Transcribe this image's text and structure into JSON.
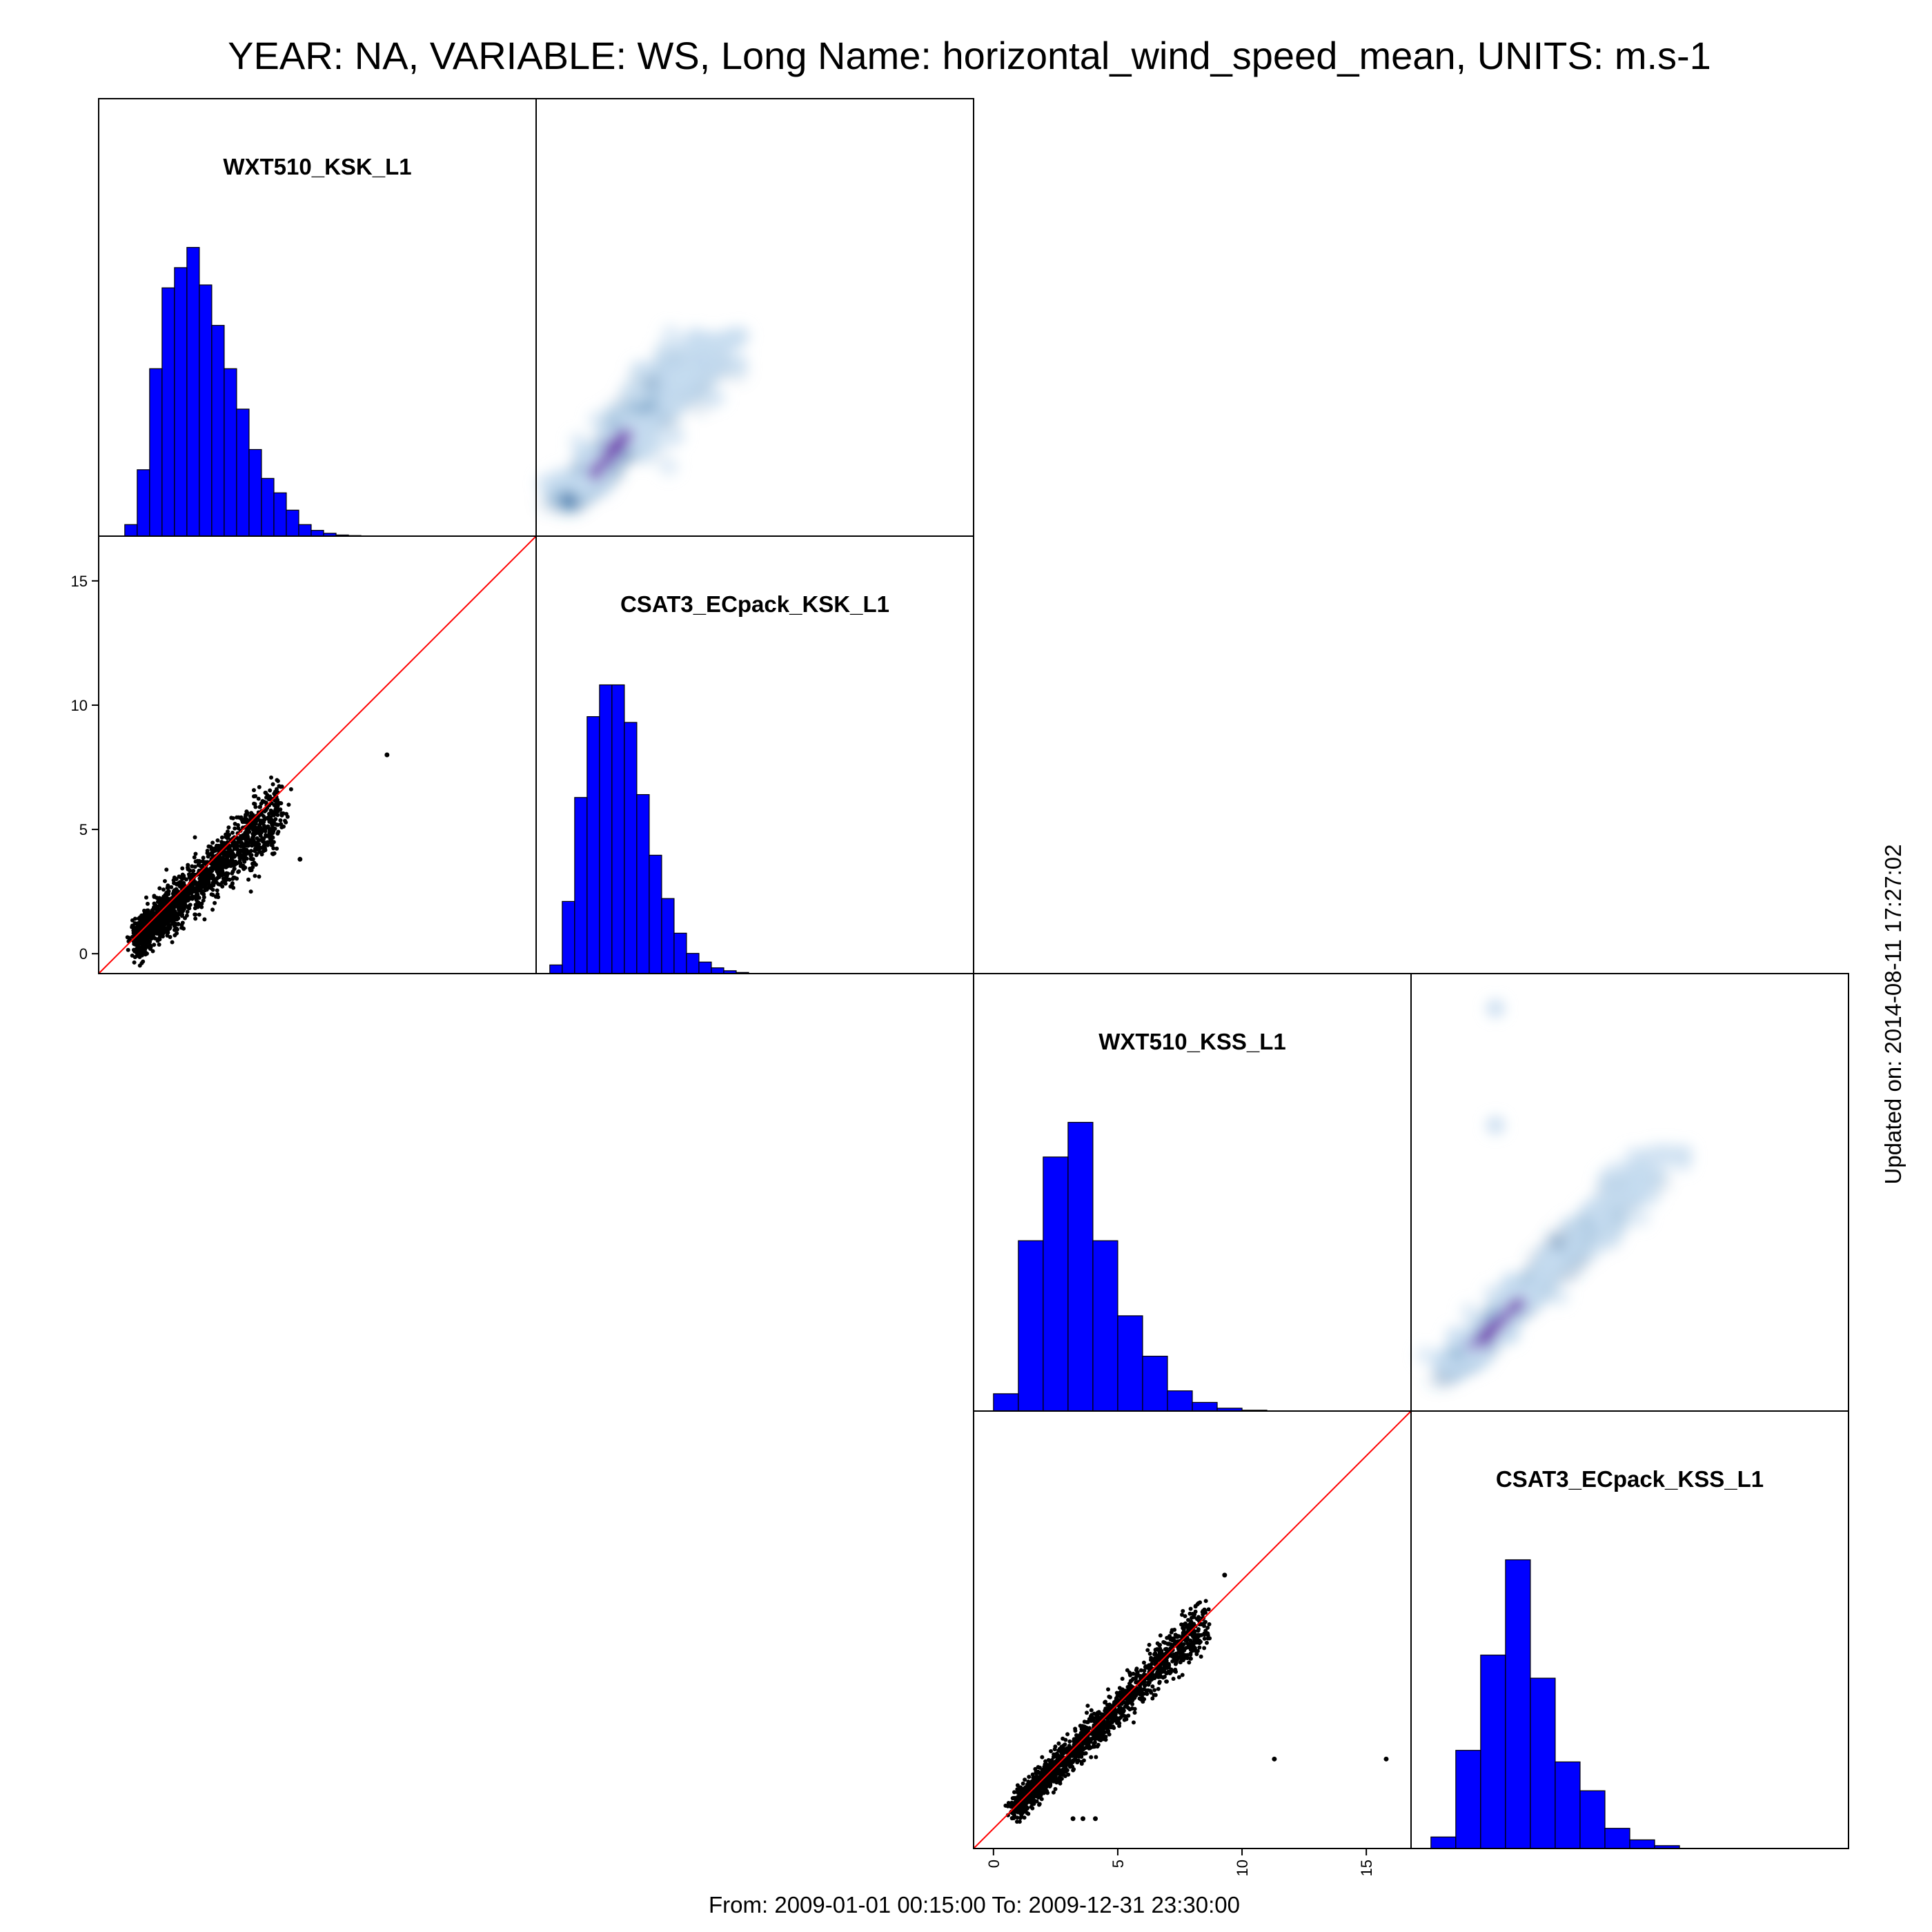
{
  "title": "YEAR: NA, VARIABLE: WS, Long Name: horizontal_wind_speed_mean, UNITS: m.s-1",
  "footer": "From: 2009-01-01 00:15:00 To: 2009-12-31 23:30:00",
  "updated": "Updated on: 2014-08-11 17:27:02",
  "colors": {
    "bar": "#0000ff",
    "density_light": "#c6dbef",
    "density_mid": "#2b6fa8",
    "density_core": "#6a2ba8",
    "points": "#000000",
    "identity_line": "#ff0000",
    "frame": "#000000"
  },
  "chart_data": [
    {
      "type": "scatter",
      "panel": "KSK",
      "x_variable": "WXT510_KSK_L1",
      "y_variable": "CSAT3_ECpack_KSK_L1",
      "x_range": [
        -0.8,
        16.8
      ],
      "y_range": [
        -0.8,
        16.8
      ],
      "y_ticks": [
        0,
        5,
        10,
        15
      ],
      "reference_line": "y = x",
      "point_cloud": {
        "x_center_start": 0.8,
        "x_center_end": 6.5,
        "slope": 0.88,
        "spread_y": 0.55,
        "outliers": [
          [
            10.8,
            8.0
          ],
          [
            7.3,
            3.8
          ]
        ]
      },
      "diagonal_histograms": [
        {
          "label": "WXT510_KSK_L1",
          "bin_start": -0.25,
          "bin_width": 0.5,
          "counts": [
            0,
            0.04,
            0.23,
            0.58,
            0.86,
            0.93,
            1.0,
            0.87,
            0.73,
            0.58,
            0.44,
            0.3,
            0.2,
            0.15,
            0.09,
            0.04,
            0.02,
            0.01,
            0.004,
            0.002
          ]
        },
        {
          "label": "CSAT3_ECpack_KSK_L1",
          "bin_start": -0.25,
          "bin_width": 0.5,
          "counts": [
            0.03,
            0.25,
            0.61,
            0.89,
            1.0,
            1.0,
            0.87,
            0.62,
            0.41,
            0.26,
            0.14,
            0.07,
            0.04,
            0.02,
            0.01,
            0.004
          ]
        }
      ]
    },
    {
      "type": "scatter",
      "panel": "KSS",
      "x_variable": "WXT510_KSS_L1",
      "y_variable": "CSAT3_ECpack_KSS_L1",
      "x_range": [
        -0.8,
        16.8
      ],
      "y_range": [
        -0.8,
        16.8
      ],
      "x_ticks": [
        0,
        5,
        10,
        15
      ],
      "reference_line": "y = x",
      "point_cloud": {
        "x_center_start": 1.0,
        "x_center_end": 8.5,
        "slope": 0.98,
        "spread_y": 0.4,
        "outliers": [
          [
            9.3,
            10.2
          ],
          [
            11.3,
            2.8
          ],
          [
            15.8,
            2.8
          ],
          [
            3.2,
            0.4
          ],
          [
            3.6,
            0.4
          ],
          [
            4.1,
            0.4
          ]
        ]
      },
      "diagonal_histograms": [
        {
          "label": "WXT510_KSS_L1",
          "bin_start": 0,
          "bin_width": 1,
          "counts": [
            0.06,
            0.59,
            0.88,
            1.0,
            0.59,
            0.33,
            0.19,
            0.07,
            0.03,
            0.01,
            0.003
          ]
        },
        {
          "label": "CSAT3_ECpack_KSS_L1",
          "bin_start": 0,
          "bin_width": 1,
          "counts": [
            0.04,
            0.34,
            0.67,
            1.0,
            0.59,
            0.3,
            0.2,
            0.07,
            0.03,
            0.01
          ]
        }
      ]
    }
  ]
}
